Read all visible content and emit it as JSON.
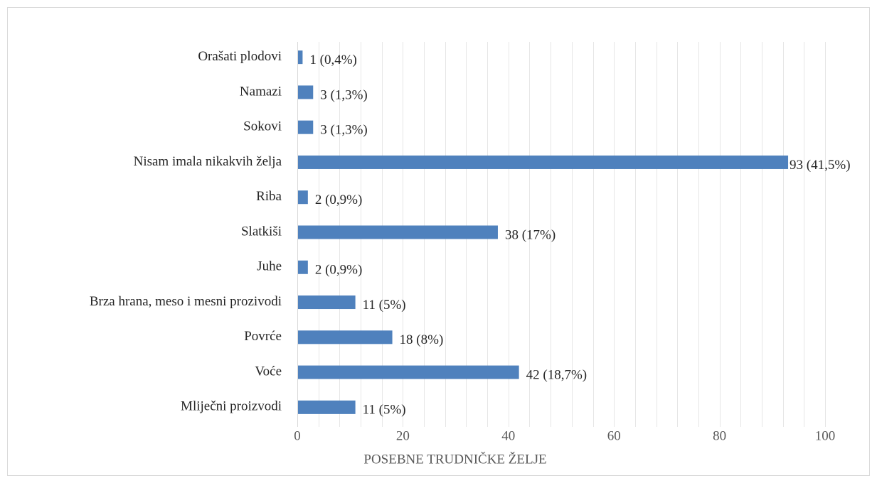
{
  "chart_data": {
    "type": "barh",
    "xlabel": "POSEBNE TRUDNIČKE ŽELJE",
    "categories": [
      "Orašati plodovi",
      "Namazi",
      "Sokovi",
      "Nisam imala nikakvih želja",
      "Riba",
      "Slatkiši",
      "Juhe",
      "Brza hrana, meso i mesni prozivodi",
      "Povrće",
      "Voće",
      "Mliječni proizvodi"
    ],
    "values": [
      1,
      3,
      3,
      93,
      2,
      38,
      2,
      11,
      18,
      42,
      11
    ],
    "value_labels": [
      "1 (0,4%)",
      "3 (1,3%)",
      "3 (1,3%)",
      "93 (41,5%)",
      "2 (0,9%)",
      "38 (17%)",
      "2 (0,9%)",
      "11 (5%)",
      "18 (8%)",
      "42 (18,7%)",
      "11 (5%)"
    ],
    "color": "#4f81bd",
    "xlim": [
      0,
      100
    ],
    "xticks": [
      0,
      20,
      40,
      60,
      80,
      100
    ],
    "minor_xticks": [
      0,
      4,
      8,
      12,
      16,
      20,
      24,
      28,
      32,
      36,
      40,
      44,
      48,
      52,
      56,
      60,
      64,
      68,
      72,
      76,
      80,
      84,
      88,
      92,
      96,
      100
    ],
    "grid": true
  }
}
